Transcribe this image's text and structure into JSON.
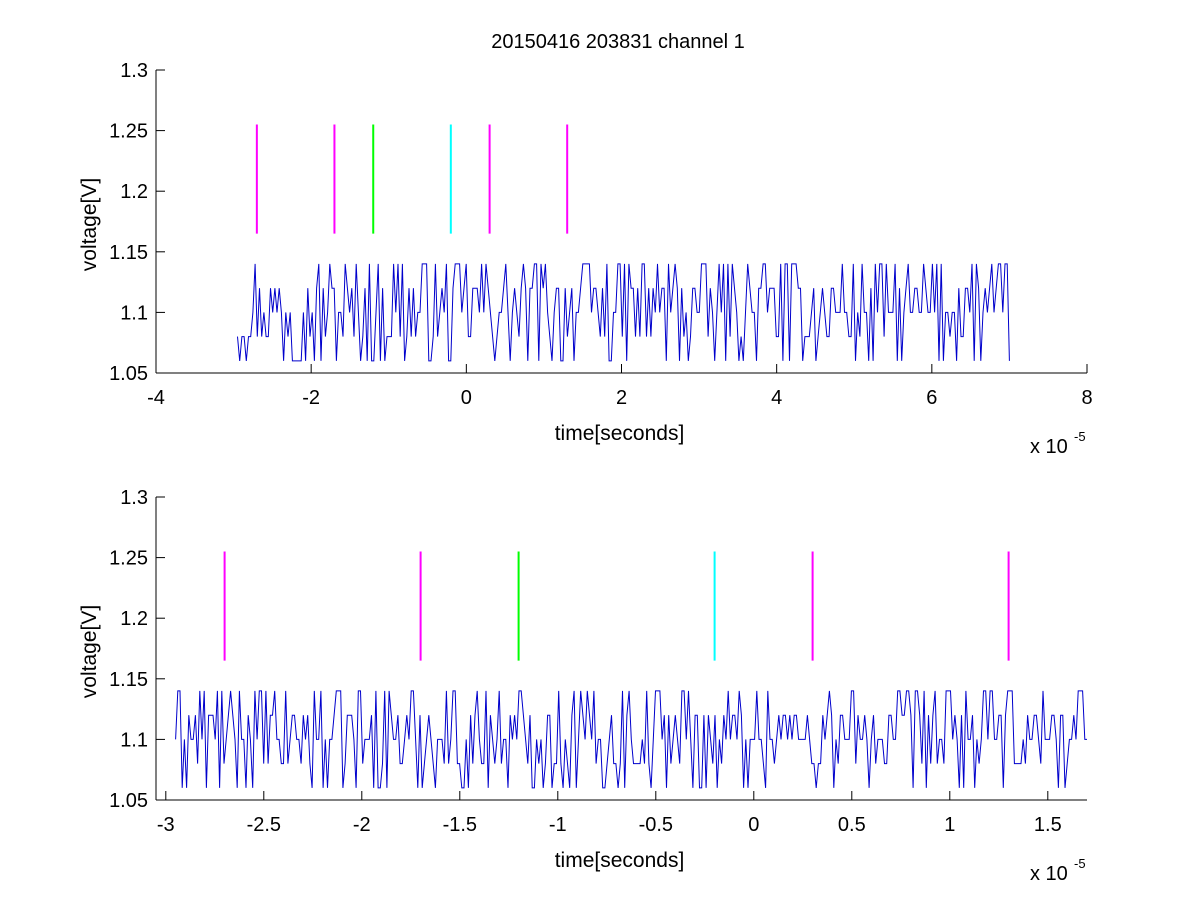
{
  "figure": {
    "title": "20150416 203831 channel 1",
    "background": "#ffffff"
  },
  "chart_data": [
    {
      "type": "line",
      "title": "20150416 203831 channel 1",
      "xlabel": "time[seconds]",
      "ylabel": "voltage[V]",
      "x_exponent_label": "x 10",
      "x_exponent_power": "-5",
      "xlim": [
        -4,
        8
      ],
      "ylim": [
        1.05,
        1.3
      ],
      "xticks": [
        -4,
        -2,
        0,
        2,
        4,
        6,
        8
      ],
      "xtick_labels": [
        "-4",
        "-2",
        "0",
        "2",
        "4",
        "6",
        "8"
      ],
      "yticks": [
        1.05,
        1.1,
        1.15,
        1.2,
        1.25,
        1.3
      ],
      "ytick_labels": [
        "1.05",
        "1.1",
        "1.15",
        "1.2",
        "1.25",
        "1.3"
      ],
      "grid": false,
      "series": [
        {
          "color": "#0000cc",
          "x_range": [
            -2.95,
            7.0
          ],
          "levels": [
            1.06,
            1.08,
            1.1,
            1.12,
            1.14
          ],
          "baseline": 1.1
        }
      ],
      "markers": [
        {
          "x": -2.7,
          "y": [
            1.165,
            1.255
          ],
          "color": "#ff00ff"
        },
        {
          "x": -1.7,
          "y": [
            1.165,
            1.255
          ],
          "color": "#ff00ff"
        },
        {
          "x": -1.2,
          "y": [
            1.165,
            1.255
          ],
          "color": "#00ff00"
        },
        {
          "x": -0.2,
          "y": [
            1.165,
            1.255
          ],
          "color": "#00ffff"
        },
        {
          "x": 0.3,
          "y": [
            1.165,
            1.255
          ],
          "color": "#ff00ff"
        },
        {
          "x": 1.3,
          "y": [
            1.165,
            1.255
          ],
          "color": "#ff00ff"
        }
      ]
    },
    {
      "type": "line",
      "title": "",
      "xlabel": "time[seconds]",
      "ylabel": "voltage[V]",
      "x_exponent_label": "x 10",
      "x_exponent_power": "-5",
      "xlim": [
        -3.05,
        1.7
      ],
      "ylim": [
        1.05,
        1.3
      ],
      "xticks": [
        -3,
        -2.5,
        -2,
        -1.5,
        -1,
        -0.5,
        0,
        0.5,
        1,
        1.5
      ],
      "xtick_labels": [
        "-3",
        "-2.5",
        "-2",
        "-1.5",
        "-1",
        "-0.5",
        "0",
        "0.5",
        "1",
        "1.5"
      ],
      "yticks": [
        1.05,
        1.1,
        1.15,
        1.2,
        1.25,
        1.3
      ],
      "ytick_labels": [
        "1.05",
        "1.1",
        "1.15",
        "1.2",
        "1.25",
        "1.3"
      ],
      "grid": false,
      "series": [
        {
          "color": "#0000cc",
          "x_range": [
            -2.95,
            1.7
          ],
          "levels": [
            1.06,
            1.08,
            1.1,
            1.12,
            1.14
          ],
          "baseline": 1.1
        }
      ],
      "markers": [
        {
          "x": -2.7,
          "y": [
            1.165,
            1.255
          ],
          "color": "#ff00ff"
        },
        {
          "x": -1.7,
          "y": [
            1.165,
            1.255
          ],
          "color": "#ff00ff"
        },
        {
          "x": -1.2,
          "y": [
            1.165,
            1.255
          ],
          "color": "#00ff00"
        },
        {
          "x": -0.2,
          "y": [
            1.165,
            1.255
          ],
          "color": "#00ffff"
        },
        {
          "x": 0.3,
          "y": [
            1.165,
            1.255
          ],
          "color": "#ff00ff"
        },
        {
          "x": 1.3,
          "y": [
            1.165,
            1.255
          ],
          "color": "#ff00ff"
        }
      ]
    }
  ]
}
